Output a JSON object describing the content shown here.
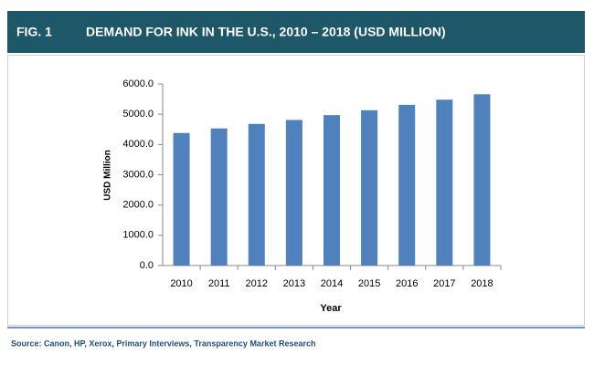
{
  "chart_data": {
    "type": "bar",
    "figure_label": "FIG. 1",
    "title": "DEMAND FOR INK IN THE U.S., 2010 – 2018 (USD MILLION)",
    "x_label": "Year",
    "y_label": "USD Million",
    "source": "Source: Canon, HP, Xerox, Primary Interviews, Transparency Market Research",
    "categories": [
      "2010",
      "2011",
      "2012",
      "2013",
      "2014",
      "2015",
      "2016",
      "2017",
      "2018"
    ],
    "values": [
      4380,
      4530,
      4680,
      4810,
      4970,
      5130,
      5310,
      5480,
      5660
    ],
    "color": "#4f81bd",
    "ylim": [
      0,
      6000
    ],
    "yticks": [
      {
        "value": 0,
        "label": "0.0"
      },
      {
        "value": 1000,
        "label": "1000.0"
      },
      {
        "value": 2000,
        "label": "2000.0"
      },
      {
        "value": 3000,
        "label": "3000.0"
      },
      {
        "value": 4000,
        "label": "4000.0"
      },
      {
        "value": 5000,
        "label": "5000.0"
      },
      {
        "value": 6000,
        "label": "6000.0"
      }
    ],
    "grid": false
  }
}
